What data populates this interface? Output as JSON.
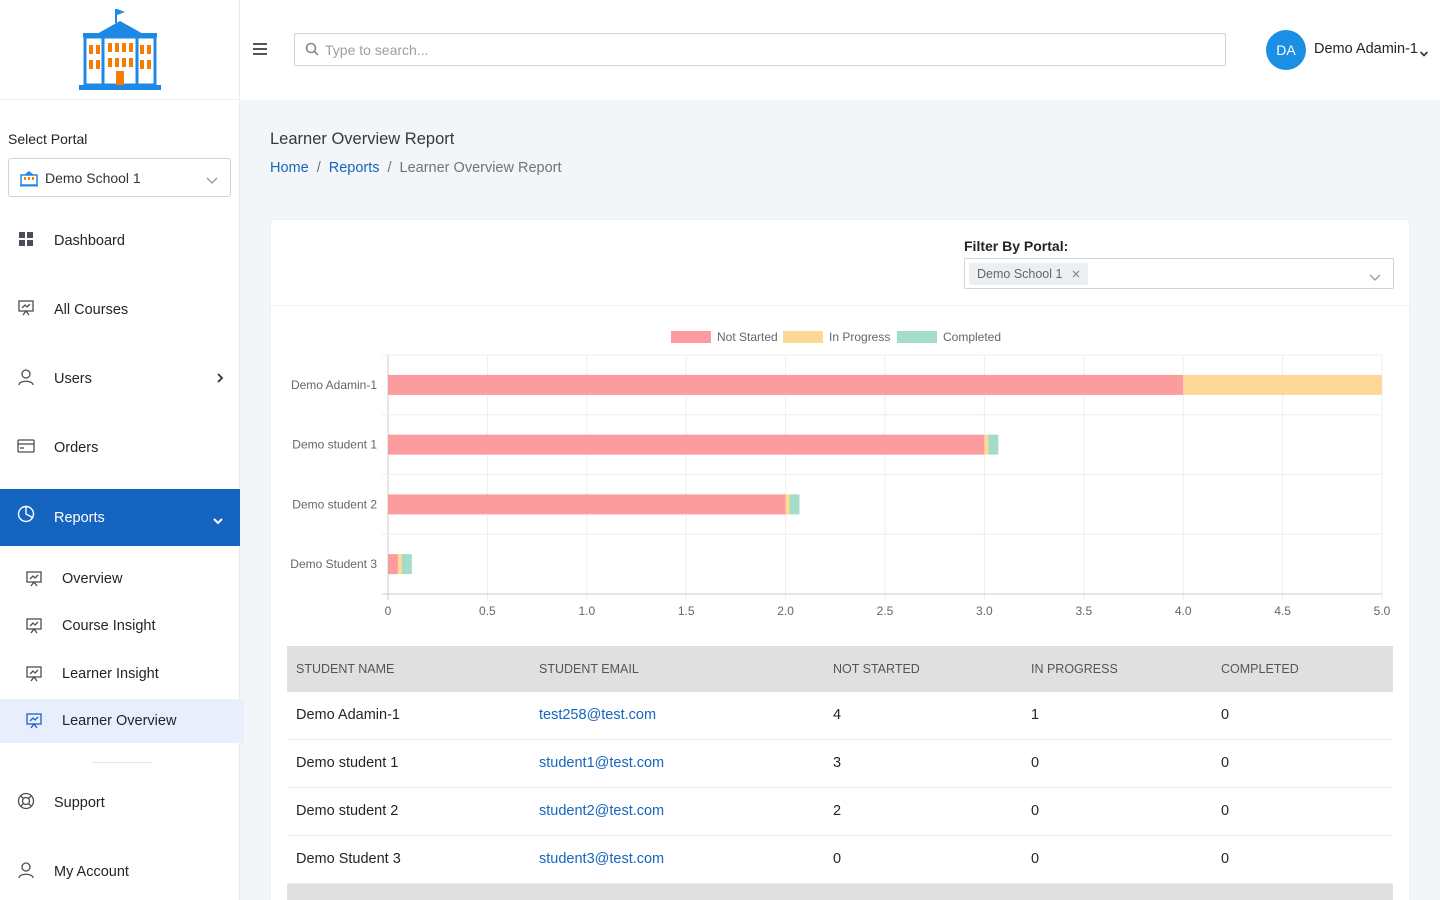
{
  "app": {
    "title": "Learner Overview Report"
  },
  "sidebar": {
    "portal_label": "Select Portal",
    "portal_value": "Demo School 1",
    "items": [
      {
        "label": "Dashboard",
        "icon": "grid-icon"
      },
      {
        "label": "All Courses",
        "icon": "presentation-icon"
      },
      {
        "label": "Users",
        "icon": "user-icon"
      },
      {
        "label": "Orders",
        "icon": "credit-card-icon"
      },
      {
        "label": "Reports",
        "icon": "pie-chart-icon"
      }
    ],
    "sub_items": [
      {
        "label": "Overview"
      },
      {
        "label": "Course Insight"
      },
      {
        "label": "Learner Insight"
      },
      {
        "label": "Learner Overview"
      }
    ],
    "bottom_items": [
      {
        "label": "Support",
        "icon": "lifebuoy-icon"
      },
      {
        "label": "My Account",
        "icon": "user-icon"
      }
    ]
  },
  "topbar": {
    "search_placeholder": "Type to search...",
    "avatar_initials": "DA",
    "user_name": "Demo Adamin-1"
  },
  "page": {
    "title": "Learner Overview Report",
    "breadcrumb": [
      "Home",
      "Reports",
      "Learner Overview Report"
    ]
  },
  "filter": {
    "label": "Filter By Portal:",
    "chip": "Demo School 1"
  },
  "chart_data": {
    "type": "bar",
    "orientation": "horizontal",
    "stacked": true,
    "categories": [
      "Demo Adamin-1",
      "Demo student 1",
      "Demo student 2",
      "Demo Student 3"
    ],
    "series": [
      {
        "name": "Not Started",
        "color": "#fc9c9f",
        "values": [
          4,
          3,
          2,
          0.05
        ]
      },
      {
        "name": "In Progress",
        "color": "#fdd896",
        "values": [
          1,
          0.02,
          0.02,
          0.02
        ]
      },
      {
        "name": "Completed",
        "color": "#a3ddc9",
        "values": [
          0,
          0.05,
          0.05,
          0.05
        ]
      }
    ],
    "xlim": [
      0,
      5
    ],
    "xticks": [
      "0",
      "0.5",
      "1.0",
      "1.5",
      "2.0",
      "2.5",
      "3.0",
      "3.5",
      "4.0",
      "4.5",
      "5.0"
    ],
    "legend": "top-center",
    "grid": true
  },
  "table": {
    "headers": [
      "STUDENT NAME",
      "STUDENT EMAIL",
      "NOT STARTED",
      "IN PROGRESS",
      "COMPLETED"
    ],
    "rows": [
      [
        "Demo Adamin-1",
        "test258@test.com",
        "4",
        "1",
        "0"
      ],
      [
        "Demo student 1",
        "student1@test.com",
        "3",
        "0",
        "0"
      ],
      [
        "Demo student 2",
        "student2@test.com",
        "2",
        "0",
        "0"
      ],
      [
        "Demo Student 3",
        "student3@test.com",
        "0",
        "0",
        "0"
      ]
    ]
  }
}
